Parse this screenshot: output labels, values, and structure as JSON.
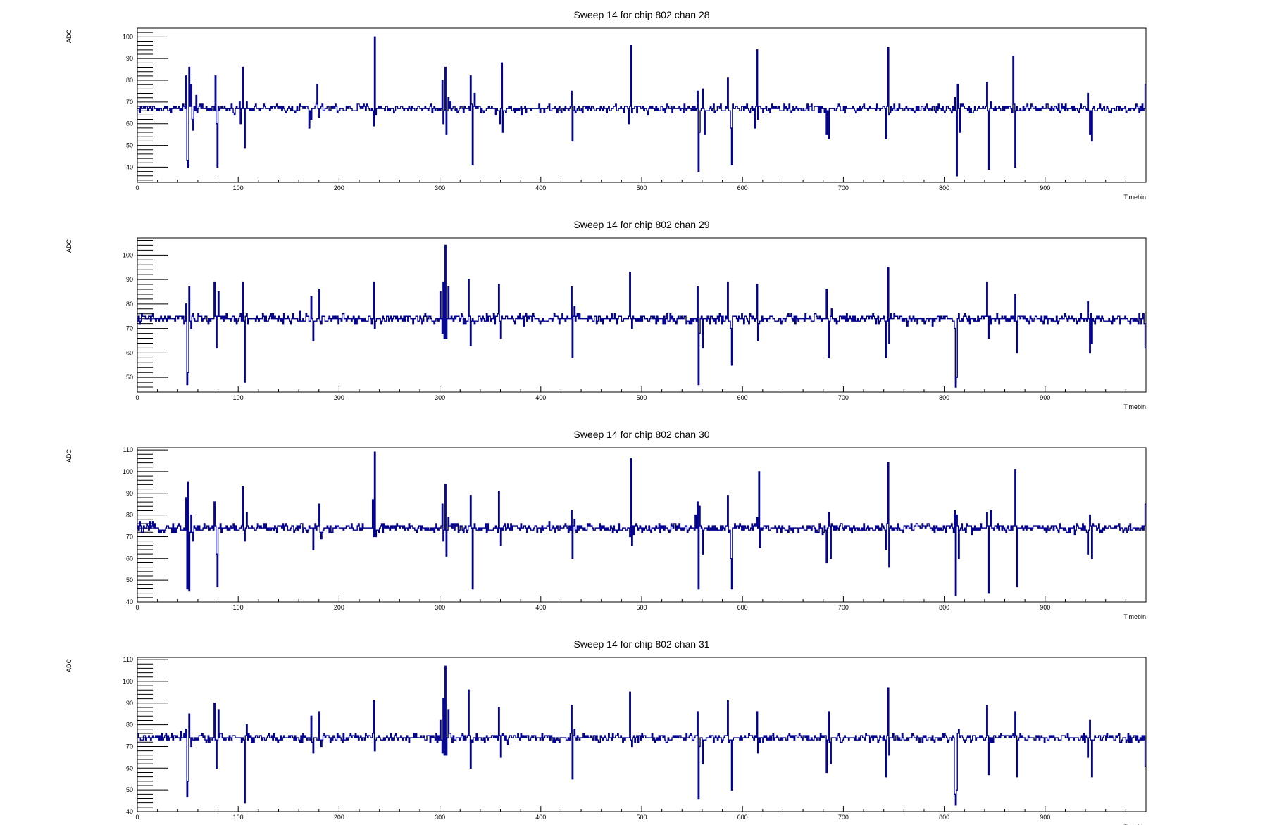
{
  "colors": {
    "trace": "#00008b",
    "frame": "#000000",
    "background": "#ffffff"
  },
  "chart_data": [
    {
      "type": "line",
      "title": "Sweep 14 for chip 802 chan 28",
      "xlabel": "Timebin",
      "ylabel": "ADC",
      "xlim": [
        0,
        1000
      ],
      "ylim": [
        33,
        104
      ],
      "xticks": [
        0,
        100,
        200,
        300,
        400,
        500,
        600,
        700,
        800,
        900
      ],
      "yticks": [
        40,
        50,
        60,
        70,
        80,
        90,
        100
      ],
      "baseline": 67,
      "noise": 1.2,
      "spikes": [
        [
          48,
          82
        ],
        [
          49,
          43
        ],
        [
          50,
          40
        ],
        [
          51,
          86
        ],
        [
          53,
          78
        ],
        [
          54,
          62
        ],
        [
          55,
          57
        ],
        [
          58,
          73
        ],
        [
          77,
          82
        ],
        [
          78,
          60
        ],
        [
          79,
          40
        ],
        [
          101,
          70
        ],
        [
          102,
          60
        ],
        [
          104,
          86
        ],
        [
          106,
          49
        ],
        [
          108,
          70
        ],
        [
          170,
          58
        ],
        [
          172,
          62
        ],
        [
          178,
          78
        ],
        [
          180,
          63
        ],
        [
          234,
          59
        ],
        [
          235,
          100
        ],
        [
          236,
          64
        ],
        [
          302,
          80
        ],
        [
          303,
          60
        ],
        [
          305,
          86
        ],
        [
          306,
          55
        ],
        [
          308,
          72
        ],
        [
          330,
          82
        ],
        [
          332,
          41
        ],
        [
          334,
          74
        ],
        [
          359,
          60
        ],
        [
          361,
          88
        ],
        [
          362,
          56
        ],
        [
          430,
          75
        ],
        [
          431,
          52
        ],
        [
          433,
          68
        ],
        [
          487,
          60
        ],
        [
          489,
          96
        ],
        [
          490,
          65
        ],
        [
          555,
          75
        ],
        [
          556,
          38
        ],
        [
          557,
          56
        ],
        [
          560,
          76
        ],
        [
          562,
          55
        ],
        [
          585,
          81
        ],
        [
          588,
          58
        ],
        [
          589,
          41
        ],
        [
          612,
          58
        ],
        [
          614,
          94
        ],
        [
          615,
          62
        ],
        [
          683,
          55
        ],
        [
          685,
          53
        ],
        [
          688,
          67
        ],
        [
          742,
          53
        ],
        [
          744,
          95
        ],
        [
          745,
          64
        ],
        [
          810,
          72
        ],
        [
          812,
          36
        ],
        [
          813,
          78
        ],
        [
          815,
          56
        ],
        [
          842,
          79
        ],
        [
          844,
          39
        ],
        [
          846,
          70
        ],
        [
          868,
          91
        ],
        [
          870,
          40
        ],
        [
          942,
          74
        ],
        [
          944,
          55
        ],
        [
          946,
          52
        ],
        [
          999,
          78
        ]
      ]
    },
    {
      "type": "line",
      "title": "Sweep 14 for chip 802 chan 29",
      "xlabel": "Timebin",
      "ylabel": "ADC",
      "xlim": [
        0,
        1000
      ],
      "ylim": [
        44,
        107
      ],
      "xticks": [
        0,
        100,
        200,
        300,
        400,
        500,
        600,
        700,
        800,
        900
      ],
      "yticks": [
        50,
        60,
        70,
        80,
        90,
        100
      ],
      "baseline": 74,
      "noise": 1.2,
      "spikes": [
        [
          48,
          80
        ],
        [
          49,
          47
        ],
        [
          50,
          52
        ],
        [
          51,
          87
        ],
        [
          53,
          70
        ],
        [
          76,
          89
        ],
        [
          78,
          62
        ],
        [
          80,
          85
        ],
        [
          104,
          89
        ],
        [
          106,
          48
        ],
        [
          108,
          76
        ],
        [
          172,
          83
        ],
        [
          174,
          65
        ],
        [
          180,
          86
        ],
        [
          182,
          72
        ],
        [
          234,
          89
        ],
        [
          235,
          70
        ],
        [
          300,
          85
        ],
        [
          302,
          68
        ],
        [
          303,
          89
        ],
        [
          304,
          66
        ],
        [
          305,
          104
        ],
        [
          306,
          66
        ],
        [
          308,
          87
        ],
        [
          328,
          90
        ],
        [
          330,
          63
        ],
        [
          332,
          74
        ],
        [
          358,
          88
        ],
        [
          360,
          66
        ],
        [
          430,
          87
        ],
        [
          431,
          58
        ],
        [
          433,
          79
        ],
        [
          488,
          93
        ],
        [
          490,
          70
        ],
        [
          555,
          87
        ],
        [
          556,
          47
        ],
        [
          557,
          68
        ],
        [
          560,
          62
        ],
        [
          585,
          89
        ],
        [
          588,
          70
        ],
        [
          589,
          55
        ],
        [
          614,
          88
        ],
        [
          615,
          65
        ],
        [
          683,
          86
        ],
        [
          685,
          58
        ],
        [
          688,
          78
        ],
        [
          742,
          58
        ],
        [
          744,
          95
        ],
        [
          745,
          64
        ],
        [
          810,
          70
        ],
        [
          811,
          46
        ],
        [
          812,
          50
        ],
        [
          814,
          76
        ],
        [
          842,
          89
        ],
        [
          844,
          66
        ],
        [
          846,
          72
        ],
        [
          870,
          84
        ],
        [
          872,
          60
        ],
        [
          942,
          81
        ],
        [
          944,
          60
        ],
        [
          946,
          64
        ],
        [
          999,
          62
        ]
      ]
    },
    {
      "type": "line",
      "title": "Sweep 14 for chip 802 chan 30",
      "xlabel": "Timebin",
      "ylabel": "ADC",
      "xlim": [
        0,
        1000
      ],
      "ylim": [
        40,
        111
      ],
      "xticks": [
        0,
        100,
        200,
        300,
        400,
        500,
        600,
        700,
        800,
        900
      ],
      "yticks": [
        40,
        50,
        60,
        70,
        80,
        90,
        100,
        110
      ],
      "baseline": 74,
      "noise": 1.3,
      "spikes": [
        [
          48,
          88
        ],
        [
          49,
          46
        ],
        [
          50,
          95
        ],
        [
          51,
          45
        ],
        [
          53,
          80
        ],
        [
          55,
          68
        ],
        [
          76,
          86
        ],
        [
          78,
          62
        ],
        [
          79,
          47
        ],
        [
          104,
          93
        ],
        [
          106,
          68
        ],
        [
          108,
          81
        ],
        [
          174,
          64
        ],
        [
          180,
          85
        ],
        [
          182,
          69
        ],
        [
          233,
          87
        ],
        [
          234,
          70
        ],
        [
          235,
          109
        ],
        [
          236,
          70
        ],
        [
          302,
          85
        ],
        [
          303,
          68
        ],
        [
          305,
          94
        ],
        [
          306,
          61
        ],
        [
          308,
          79
        ],
        [
          330,
          89
        ],
        [
          332,
          46
        ],
        [
          334,
          76
        ],
        [
          358,
          91
        ],
        [
          360,
          66
        ],
        [
          430,
          82
        ],
        [
          431,
          60
        ],
        [
          433,
          78
        ],
        [
          488,
          70
        ],
        [
          489,
          106
        ],
        [
          490,
          66
        ],
        [
          553,
          80
        ],
        [
          555,
          86
        ],
        [
          556,
          46
        ],
        [
          557,
          84
        ],
        [
          560,
          62
        ],
        [
          585,
          89
        ],
        [
          588,
          60
        ],
        [
          589,
          46
        ],
        [
          614,
          79
        ],
        [
          616,
          100
        ],
        [
          617,
          65
        ],
        [
          683,
          58
        ],
        [
          685,
          81
        ],
        [
          687,
          60
        ],
        [
          742,
          64
        ],
        [
          744,
          104
        ],
        [
          745,
          56
        ],
        [
          810,
          82
        ],
        [
          811,
          43
        ],
        [
          812,
          80
        ],
        [
          814,
          60
        ],
        [
          842,
          81
        ],
        [
          844,
          44
        ],
        [
          846,
          82
        ],
        [
          870,
          101
        ],
        [
          872,
          47
        ],
        [
          942,
          62
        ],
        [
          944,
          80
        ],
        [
          946,
          60
        ],
        [
          999,
          85
        ]
      ]
    },
    {
      "type": "line",
      "title": "Sweep 14 for chip 802 chan 31",
      "xlabel": "Timebin",
      "ylabel": "ADC",
      "xlim": [
        0,
        1000
      ],
      "ylim": [
        40,
        111
      ],
      "xticks": [
        0,
        100,
        200,
        300,
        400,
        500,
        600,
        700,
        800,
        900
      ],
      "yticks": [
        40,
        50,
        60,
        70,
        80,
        90,
        100,
        110
      ],
      "baseline": 74,
      "noise": 1.2,
      "spikes": [
        [
          48,
          78
        ],
        [
          49,
          47
        ],
        [
          50,
          54
        ],
        [
          51,
          85
        ],
        [
          53,
          70
        ],
        [
          76,
          90
        ],
        [
          78,
          60
        ],
        [
          80,
          87
        ],
        [
          104,
          74
        ],
        [
          106,
          44
        ],
        [
          108,
          80
        ],
        [
          172,
          84
        ],
        [
          174,
          67
        ],
        [
          180,
          86
        ],
        [
          182,
          70
        ],
        [
          234,
          91
        ],
        [
          235,
          68
        ],
        [
          300,
          82
        ],
        [
          302,
          67
        ],
        [
          303,
          92
        ],
        [
          304,
          66
        ],
        [
          305,
          107
        ],
        [
          306,
          66
        ],
        [
          308,
          87
        ],
        [
          328,
          96
        ],
        [
          330,
          60
        ],
        [
          332,
          72
        ],
        [
          358,
          88
        ],
        [
          360,
          65
        ],
        [
          430,
          89
        ],
        [
          431,
          55
        ],
        [
          433,
          78
        ],
        [
          488,
          95
        ],
        [
          490,
          70
        ],
        [
          555,
          86
        ],
        [
          556,
          46
        ],
        [
          557,
          70
        ],
        [
          560,
          62
        ],
        [
          585,
          91
        ],
        [
          588,
          73
        ],
        [
          589,
          50
        ],
        [
          614,
          86
        ],
        [
          615,
          67
        ],
        [
          683,
          58
        ],
        [
          685,
          86
        ],
        [
          687,
          62
        ],
        [
          742,
          56
        ],
        [
          744,
          97
        ],
        [
          745,
          66
        ],
        [
          810,
          48
        ],
        [
          811,
          43
        ],
        [
          812,
          50
        ],
        [
          814,
          78
        ],
        [
          842,
          89
        ],
        [
          844,
          57
        ],
        [
          846,
          72
        ],
        [
          870,
          86
        ],
        [
          872,
          56
        ],
        [
          942,
          65
        ],
        [
          944,
          82
        ],
        [
          946,
          56
        ],
        [
          999,
          61
        ]
      ]
    }
  ]
}
